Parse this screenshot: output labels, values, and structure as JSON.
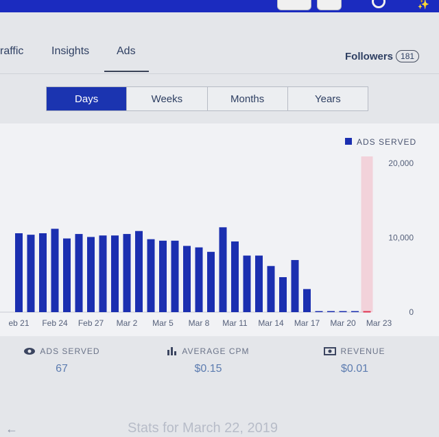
{
  "tabs": [
    {
      "label": "raffic"
    },
    {
      "label": "Insights"
    },
    {
      "label": "Ads"
    }
  ],
  "followers": {
    "label": "Followers",
    "count": "181"
  },
  "period_options": [
    "Days",
    "Weeks",
    "Months",
    "Years"
  ],
  "chart_data": {
    "type": "bar",
    "legend": "ADS SERVED",
    "legend_color": "#1b2fb0",
    "legend_placement": "top-right",
    "y_axis_position": "right",
    "ylim": [
      0,
      20000
    ],
    "yticks": [
      "20,000",
      "10,000",
      "0"
    ],
    "x_tick_labels": [
      "eb 21",
      "Feb 24",
      "Feb 27",
      "Mar 2",
      "Mar 5",
      "Mar 8",
      "Mar 11",
      "Mar 14",
      "Mar 17",
      "Mar 20",
      "Mar 23"
    ],
    "categories": [
      "Feb 21",
      "Feb 22",
      "Feb 23",
      "Feb 24",
      "Feb 25",
      "Feb 26",
      "Feb 27",
      "Feb 28",
      "Mar 1",
      "Mar 2",
      "Mar 3",
      "Mar 4",
      "Mar 5",
      "Mar 6",
      "Mar 7",
      "Mar 8",
      "Mar 9",
      "Mar 10",
      "Mar 11",
      "Mar 12",
      "Mar 13",
      "Mar 14",
      "Mar 15",
      "Mar 16",
      "Mar 17",
      "Mar 18",
      "Mar 19",
      "Mar 20",
      "Mar 21",
      "Mar 22"
    ],
    "values": [
      10600,
      10400,
      10600,
      11200,
      9900,
      10500,
      10100,
      10300,
      10300,
      10500,
      10900,
      9800,
      9600,
      9600,
      8900,
      8700,
      8100,
      11400,
      9500,
      7600,
      7600,
      6200,
      4700,
      7000,
      3100,
      0,
      0,
      0,
      0,
      67
    ],
    "highlight_category": "Mar 22",
    "highlight_color": "#f2c4cf",
    "bar_color": "#1b2fb0"
  },
  "stats": [
    {
      "icon": "eye-icon",
      "label": "ADS SERVED",
      "value": "67"
    },
    {
      "icon": "bar-chart-icon",
      "label": "AVERAGE CPM",
      "value": "$0.15"
    },
    {
      "icon": "cash-icon",
      "label": "REVENUE",
      "value": "$0.01"
    }
  ],
  "footer": {
    "caption": "Stats for March 22, 2019"
  }
}
